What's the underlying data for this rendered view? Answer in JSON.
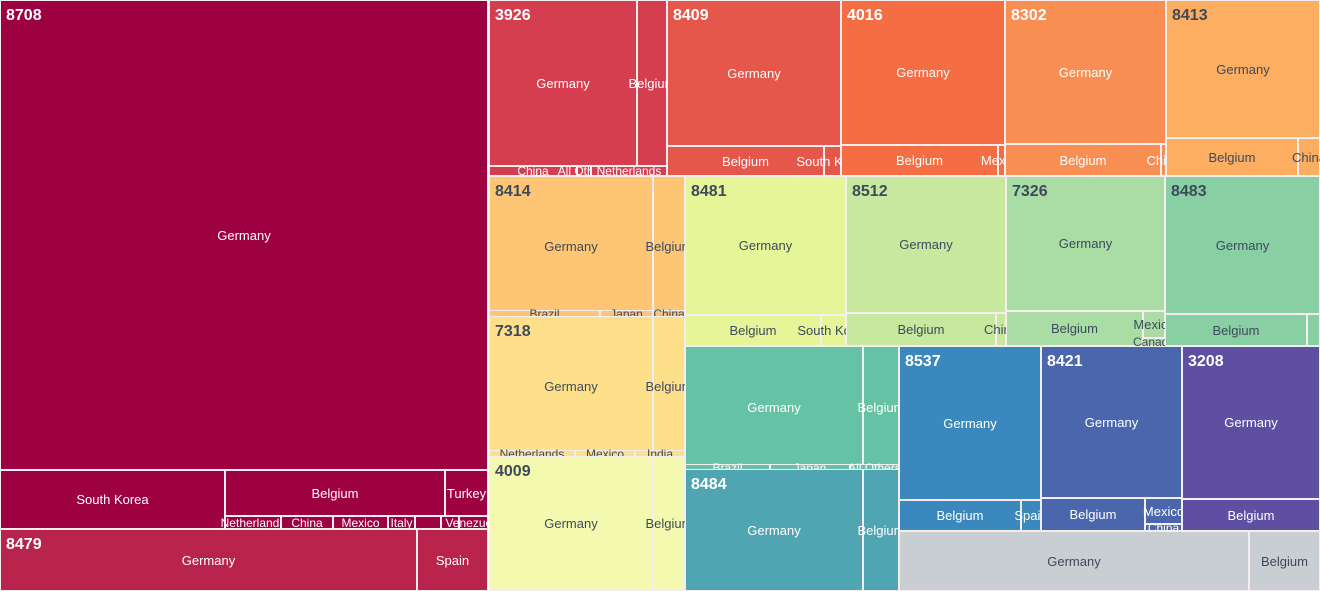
{
  "chart_data": {
    "type": "treemap",
    "title": "",
    "groups": [
      {
        "code": "8708",
        "color": "#9e0142",
        "text": "#ffffff",
        "children": [
          "Germany",
          "South Korea",
          "Belgium",
          "Turkey",
          "Netherlands",
          "China",
          "Mexico",
          "Italy",
          "",
          "",
          "Venezuela"
        ]
      },
      {
        "code": "8479",
        "color": "#b8244b",
        "text": "#ffffff",
        "children": [
          "Germany",
          "Spain"
        ]
      },
      {
        "code": "3926",
        "color": "#d53e4f",
        "text": "#ffffff",
        "children": [
          "Germany",
          "Belgium",
          "China",
          "All Others",
          "Netherlands"
        ]
      },
      {
        "code": "8409",
        "color": "#e5564b",
        "text": "#ffffff",
        "children": [
          "Germany",
          "Belgium",
          "South Korea"
        ]
      },
      {
        "code": "4016",
        "color": "#f46d43",
        "text": "#ffffff",
        "children": [
          "Germany",
          "Belgium",
          "Mexico"
        ]
      },
      {
        "code": "8302",
        "color": "#f98e52",
        "text": "#ffffff",
        "children": [
          "Germany",
          "Belgium",
          "China"
        ]
      },
      {
        "code": "8413",
        "color": "#fdae61",
        "text": "#3d4a5c",
        "children": [
          "Germany",
          "Belgium",
          "China"
        ]
      },
      {
        "code": "8414",
        "color": "#fec574",
        "text": "#3d4a5c",
        "children": [
          "Germany",
          "Belgium",
          "Brazil",
          "Japan",
          "China"
        ]
      },
      {
        "code": "7318",
        "color": "#fee08b",
        "text": "#3d4a5c",
        "children": [
          "Germany",
          "Belgium",
          "Netherlands",
          "Mexico",
          "India"
        ]
      },
      {
        "code": "4009",
        "color": "#f3f9ae",
        "text": "#3d4a5c",
        "children": [
          "Germany",
          "Belgium"
        ]
      },
      {
        "code": "8481",
        "color": "#e6f598",
        "text": "#3d4a5c",
        "children": [
          "Germany",
          "Belgium",
          "South Korea"
        ]
      },
      {
        "code": "8512",
        "color": "#c7e89e",
        "text": "#3d4a5c",
        "children": [
          "Germany",
          "Belgium",
          "China"
        ]
      },
      {
        "code": "7326",
        "color": "#aadda3",
        "text": "#3d4a5c",
        "children": [
          "Germany",
          "Belgium",
          "Mexico",
          "Canada"
        ]
      },
      {
        "code": "8483",
        "color": "#88cfa4",
        "text": "#3d4a5c",
        "children": [
          "Germany",
          "Belgium",
          ""
        ]
      },
      {
        "code": "",
        "color": "#66c2a5",
        "text": "#ffffff",
        "children": [
          "Germany",
          "Belgium",
          "Brazil",
          "Japan",
          "All Others"
        ]
      },
      {
        "code": "8484",
        "color": "#4fa5b1",
        "text": "#ffffff",
        "children": [
          "Germany",
          "Belgium"
        ]
      },
      {
        "code": "8537",
        "color": "#3a88bd",
        "text": "#ffffff",
        "children": [
          "Germany",
          "Belgium",
          "Spain"
        ]
      },
      {
        "code": "8421",
        "color": "#4a67ad",
        "text": "#ffffff",
        "children": [
          "Germany",
          "Belgium",
          "Mexico",
          "China"
        ]
      },
      {
        "code": "3208",
        "color": "#5e4fa2",
        "text": "#ffffff",
        "children": [
          "Germany",
          "Belgium"
        ]
      },
      {
        "code": "",
        "color": "#c9ced2",
        "text": "#3d4a5c",
        "children": [
          "Germany",
          "Belgium"
        ]
      }
    ]
  }
}
